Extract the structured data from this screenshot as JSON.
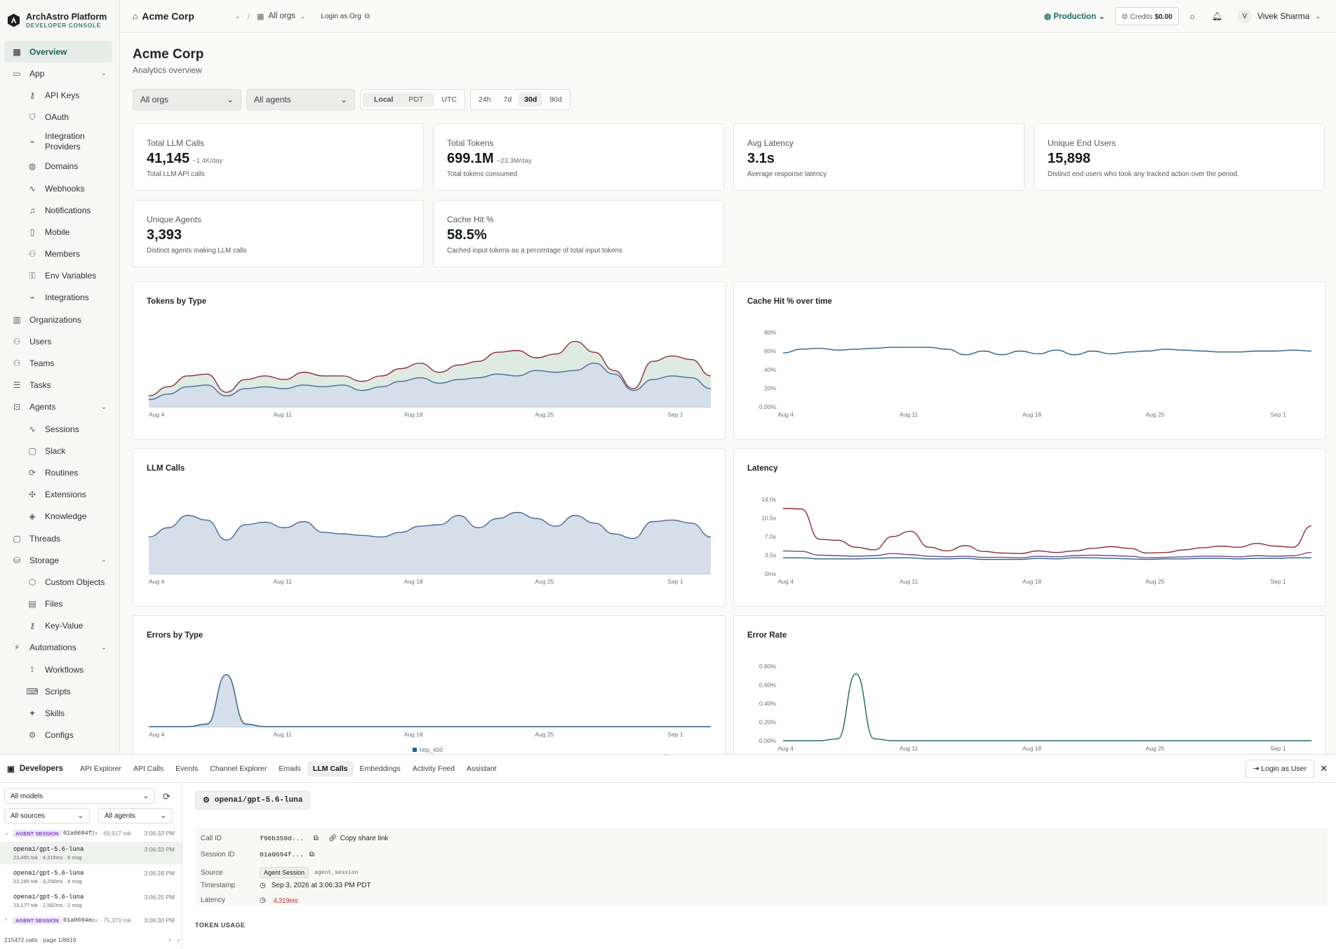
{
  "brand": {
    "name": "ArchAstro Platform",
    "sub": "DEVELOPER CONSOLE"
  },
  "sidebar": {
    "items": [
      {
        "label": "Overview",
        "icon": "grid-icon",
        "active": true
      },
      {
        "label": "App",
        "icon": "app-icon",
        "chevron": true
      },
      {
        "label": "API Keys",
        "icon": "key-icon",
        "sub": true
      },
      {
        "label": "OAuth",
        "icon": "shield-icon",
        "sub": true
      },
      {
        "label": "Integration Providers",
        "icon": "plug-icon",
        "sub": true
      },
      {
        "label": "Domains",
        "icon": "globe-icon",
        "sub": true
      },
      {
        "label": "Webhooks",
        "icon": "activity-icon",
        "sub": true
      },
      {
        "label": "Notifications",
        "icon": "bell-icon",
        "sub": true
      },
      {
        "label": "Mobile",
        "icon": "mobile-icon",
        "sub": true
      },
      {
        "label": "Members",
        "icon": "users-icon",
        "sub": true
      },
      {
        "label": "Env Variables",
        "icon": "lock-icon",
        "sub": true
      },
      {
        "label": "Integrations",
        "icon": "plug-icon",
        "sub": true
      },
      {
        "label": "Organizations",
        "icon": "building-icon"
      },
      {
        "label": "Users",
        "icon": "users-icon"
      },
      {
        "label": "Teams",
        "icon": "team-icon"
      },
      {
        "label": "Tasks",
        "icon": "tasks-icon"
      },
      {
        "label": "Agents",
        "icon": "bot-icon",
        "chevron": true
      },
      {
        "label": "Sessions",
        "icon": "activity-icon",
        "sub": true
      },
      {
        "label": "Slack",
        "icon": "chat-icon",
        "sub": true
      },
      {
        "label": "Routines",
        "icon": "refresh-icon",
        "sub": true
      },
      {
        "label": "Extensions",
        "icon": "puzzle-icon",
        "sub": true
      },
      {
        "label": "Knowledge",
        "icon": "layers-icon",
        "sub": true
      },
      {
        "label": "Threads",
        "icon": "chat-icon"
      },
      {
        "label": "Storage",
        "icon": "database-icon",
        "chevron": true
      },
      {
        "label": "Custom Objects",
        "icon": "cube-icon",
        "sub": true
      },
      {
        "label": "Files",
        "icon": "file-icon",
        "sub": true
      },
      {
        "label": "Key-Value",
        "icon": "key-icon",
        "sub": true
      },
      {
        "label": "Automations",
        "icon": "bolt-icon",
        "chevron": true
      },
      {
        "label": "Workflows",
        "icon": "workflow-icon",
        "sub": true
      },
      {
        "label": "Scripts",
        "icon": "code-icon",
        "sub": true
      },
      {
        "label": "Skills",
        "icon": "sparkle-icon",
        "sub": true
      },
      {
        "label": "Configs",
        "icon": "config-icon",
        "sub": true
      }
    ]
  },
  "topbar": {
    "org": "Acme Corp",
    "orgs_switch": "All orgs",
    "login_as_org": "Login as Org",
    "environment": "Production",
    "credits_label": "Credits",
    "credits_value": "$0.00",
    "user": "Vivek Sharma",
    "user_initial": "V"
  },
  "page": {
    "title": "Acme Corp",
    "subtitle": "Analytics overview"
  },
  "filters": {
    "orgs": "All orgs",
    "agents": "All agents",
    "tz": [
      "Local",
      "PDT",
      "UTC"
    ],
    "ranges": [
      "24h",
      "7d",
      "30d",
      "90d"
    ],
    "selected_range": "30d"
  },
  "stats": [
    {
      "label": "Total LLM Calls",
      "value": "41,145",
      "rate": "~1.4K/day",
      "desc": "Total LLM API calls"
    },
    {
      "label": "Total Tokens",
      "value": "699.1M",
      "rate": "~23.3M/day",
      "desc": "Total tokens consumed"
    },
    {
      "label": "Avg Latency",
      "value": "3.1s",
      "rate": "",
      "desc": "Average response latency"
    },
    {
      "label": "Unique End Users",
      "value": "15,898",
      "rate": "",
      "desc": "Distinct end users who took any tracked action over the period."
    },
    {
      "label": "Unique Agents",
      "value": "3,393",
      "rate": "",
      "desc": "Distinct agents making LLM calls"
    },
    {
      "label": "Cache Hit %",
      "value": "58.5%",
      "rate": "",
      "desc": "Cached input tokens as a percentage of total input tokens"
    }
  ],
  "chart_data": [
    {
      "type": "area",
      "title": "Tokens by Type",
      "x_ticks": [
        "Aug 4",
        "Aug 11",
        "Aug 18",
        "Aug 25",
        "Sep 1"
      ],
      "series": [
        {
          "values": [
            8,
            14,
            22,
            24,
            12,
            20,
            22,
            20,
            24,
            22,
            24,
            18,
            22,
            28,
            32,
            26,
            30,
            32,
            36,
            34,
            40,
            38,
            40,
            48,
            36,
            18,
            30,
            34,
            32,
            20
          ]
        },
        {
          "values": [
            12,
            22,
            34,
            36,
            16,
            30,
            34,
            30,
            38,
            34,
            34,
            28,
            34,
            42,
            48,
            38,
            46,
            50,
            60,
            62,
            54,
            58,
            72,
            60,
            40,
            20,
            50,
            56,
            52,
            34
          ]
        }
      ],
      "colors": [
        "#4a6b93",
        "#8a2e3a"
      ]
    },
    {
      "type": "line",
      "title": "Cache Hit % over time",
      "x_ticks": [
        "Aug 4",
        "Aug 11",
        "Aug 18",
        "Aug 25",
        "Sep 1"
      ],
      "y_ticks": [
        "80%",
        "60%",
        "40%",
        "20%",
        "0.00%"
      ],
      "series": [
        {
          "values": [
            58,
            62,
            63,
            61,
            62,
            63,
            64,
            64,
            64,
            62,
            56,
            60,
            56,
            60,
            57,
            61,
            56,
            60,
            57,
            59,
            60,
            62,
            61,
            60,
            59,
            59,
            60,
            60,
            61,
            60
          ]
        }
      ],
      "colors": [
        "#2f5f86"
      ]
    },
    {
      "type": "area",
      "title": "LLM Calls",
      "x_ticks": [
        "Aug 4",
        "Aug 11",
        "Aug 18",
        "Aug 25",
        "Sep 1"
      ],
      "series": [
        {
          "values": [
            1200,
            1500,
            1900,
            1750,
            1100,
            1600,
            1680,
            1500,
            1700,
            1350,
            1300,
            1250,
            1200,
            1350,
            1550,
            1600,
            1900,
            1500,
            1800,
            2000,
            1800,
            1550,
            1900,
            1650,
            1300,
            1150,
            1700,
            1750,
            1650,
            1200
          ]
        }
      ],
      "colors": [
        "#4a6b93"
      ]
    },
    {
      "type": "line",
      "title": "Latency",
      "x_ticks": [
        "Aug 4",
        "Aug 11",
        "Aug 18",
        "Aug 25",
        "Sep 1"
      ],
      "y_ticks": [
        "14.0s",
        "10.5s",
        "7.0s",
        "3.5s",
        "0ms"
      ],
      "series": [
        {
          "values": [
            12.3,
            12.2,
            6.5,
            6.3,
            5.0,
            4.5,
            7.0,
            8.0,
            5.0,
            4.3,
            5.3,
            4.2,
            3.9,
            3.8,
            4.3,
            4.0,
            4.3,
            4.8,
            5.1,
            4.8,
            3.9,
            4.0,
            4.5,
            4.9,
            5.2,
            5.0,
            5.7,
            5.2,
            5.0,
            9.0
          ]
        },
        {
          "values": [
            4.3,
            4.2,
            3.5,
            3.4,
            3.3,
            3.4,
            3.8,
            3.6,
            3.3,
            3.2,
            3.3,
            3.1,
            3.1,
            3.0,
            3.3,
            3.2,
            3.4,
            3.5,
            3.4,
            3.3,
            3.0,
            3.1,
            3.2,
            3.3,
            3.3,
            3.2,
            3.4,
            3.3,
            3.4,
            4.0
          ]
        },
        {
          "values": [
            3.0,
            3.0,
            2.8,
            2.8,
            2.8,
            2.9,
            3.0,
            3.0,
            2.8,
            2.8,
            2.9,
            2.7,
            2.7,
            2.7,
            2.9,
            2.8,
            3.0,
            3.0,
            2.9,
            2.8,
            2.7,
            2.8,
            2.8,
            2.9,
            2.9,
            2.8,
            2.9,
            2.9,
            3.0,
            3.0
          ]
        }
      ],
      "colors": [
        "#8a2e3a",
        "#6a4c8a",
        "#2f5f86"
      ]
    },
    {
      "type": "area",
      "title": "Errors by Type",
      "x_ticks": [
        "Aug 4",
        "Aug 11",
        "Aug 18",
        "Aug 25",
        "Sep 1"
      ],
      "series": [
        {
          "name": "http_400",
          "values": [
            0,
            0,
            0,
            0.5,
            10,
            0.5,
            0,
            0,
            0,
            0,
            0,
            0,
            0,
            0,
            0,
            0,
            0,
            0,
            0,
            0,
            0,
            0,
            0,
            0,
            0,
            0,
            0,
            0,
            0,
            0
          ]
        }
      ],
      "colors": [
        "#2f5f86"
      ]
    },
    {
      "type": "line",
      "title": "Error Rate",
      "x_ticks": [
        "Aug 4",
        "Aug 11",
        "Aug 18",
        "Aug 25",
        "Sep 1"
      ],
      "y_ticks": [
        "0.80%",
        "0.60%",
        "0.40%",
        "0.20%",
        "0.00%"
      ],
      "series": [
        {
          "values": [
            0,
            0,
            0,
            0.02,
            0.72,
            0.02,
            0,
            0,
            0,
            0,
            0,
            0,
            0,
            0,
            0,
            0,
            0,
            0,
            0,
            0,
            0,
            0,
            0,
            0,
            0,
            0,
            0,
            0,
            0,
            0
          ]
        }
      ],
      "colors": [
        "#1e6b4a"
      ]
    }
  ],
  "dev": {
    "title": "Developers",
    "tabs": [
      "API Explorer",
      "API Calls",
      "Events",
      "Channel Explorer",
      "Emails",
      "LLM Calls",
      "Embeddings",
      "Activity Feed",
      "Assistant"
    ],
    "active_tab": "LLM Calls",
    "login_user": "Login as User",
    "filters": {
      "models": "All models",
      "sources": "All sources",
      "agents": "All agents"
    },
    "rows": [
      {
        "kind": "session",
        "badge": "AGENT SESSION",
        "id": "01a0694f",
        "meta": "3× · 69,917 tok",
        "time": "3:06:33 PM"
      },
      {
        "kind": "call",
        "model": "openai/gpt-5.6-luna",
        "meta": "23,455 tok · 4,319ms · 6 msg",
        "time": "3:06:33 PM",
        "selected": true
      },
      {
        "kind": "call",
        "model": "openai/gpt-5.6-luna",
        "meta": "23,285 tok · 3,258ms · 4 msg",
        "time": "3:06:28 PM"
      },
      {
        "kind": "call",
        "model": "openai/gpt-5.6-luna",
        "meta": "23,177 tok · 2,582ms · 2 msg",
        "time": "3:06:25 PM"
      },
      {
        "kind": "session",
        "badge": "AGENT SESSION",
        "id": "01a0694e",
        "meta": "4× · 75,370 tok",
        "time": "3:06:30 PM"
      }
    ],
    "footer": "215472 calls · page 1/8619",
    "detail": {
      "model": "openai/gpt-5.6-luna",
      "call_id_label": "Call ID",
      "call_id": "f96b358d...",
      "copy_share": "Copy share link",
      "session_label": "Session ID",
      "session_id": "01a0694f...",
      "source_label": "Source",
      "source_pill": "Agent Session",
      "source_code": "agent_session",
      "ts_label": "Timestamp",
      "ts": "Sep 3, 2026 at 3:06:33 PM PDT",
      "latency_label": "Latency",
      "latency": "4,319ms",
      "section": "TOKEN USAGE"
    }
  }
}
